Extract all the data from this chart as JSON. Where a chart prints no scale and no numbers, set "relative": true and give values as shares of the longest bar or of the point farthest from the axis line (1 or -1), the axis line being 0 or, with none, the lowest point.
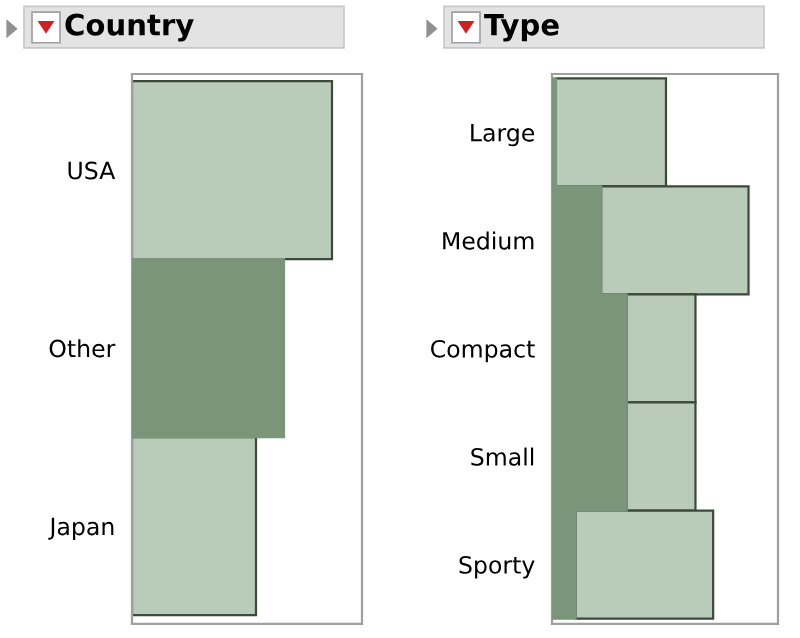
{
  "chart_data": [
    {
      "type": "bar",
      "title": "Country",
      "orientation": "horizontal",
      "stacked": true,
      "relative": true,
      "categories": [
        "USA",
        "Other",
        "Japan"
      ],
      "series": [
        {
          "color": "#7b957b",
          "values": [
            0,
            0.76,
            0
          ]
        },
        {
          "color": "#b9cbb9",
          "values": [
            1,
            0,
            0.62
          ]
        }
      ]
    },
    {
      "type": "bar",
      "title": "Type",
      "orientation": "horizontal",
      "stacked": true,
      "relative": true,
      "categories": [
        "Large",
        "Medium",
        "Compact",
        "Small",
        "Sporty"
      ],
      "series": [
        {
          "color": "#7b957b",
          "values": [
            0.02,
            0.25,
            0.38,
            0.38,
            0.12
          ]
        },
        {
          "color": "#b9cbb9",
          "values": [
            0.56,
            0.75,
            0.35,
            0.35,
            0.7
          ]
        }
      ]
    }
  ]
}
